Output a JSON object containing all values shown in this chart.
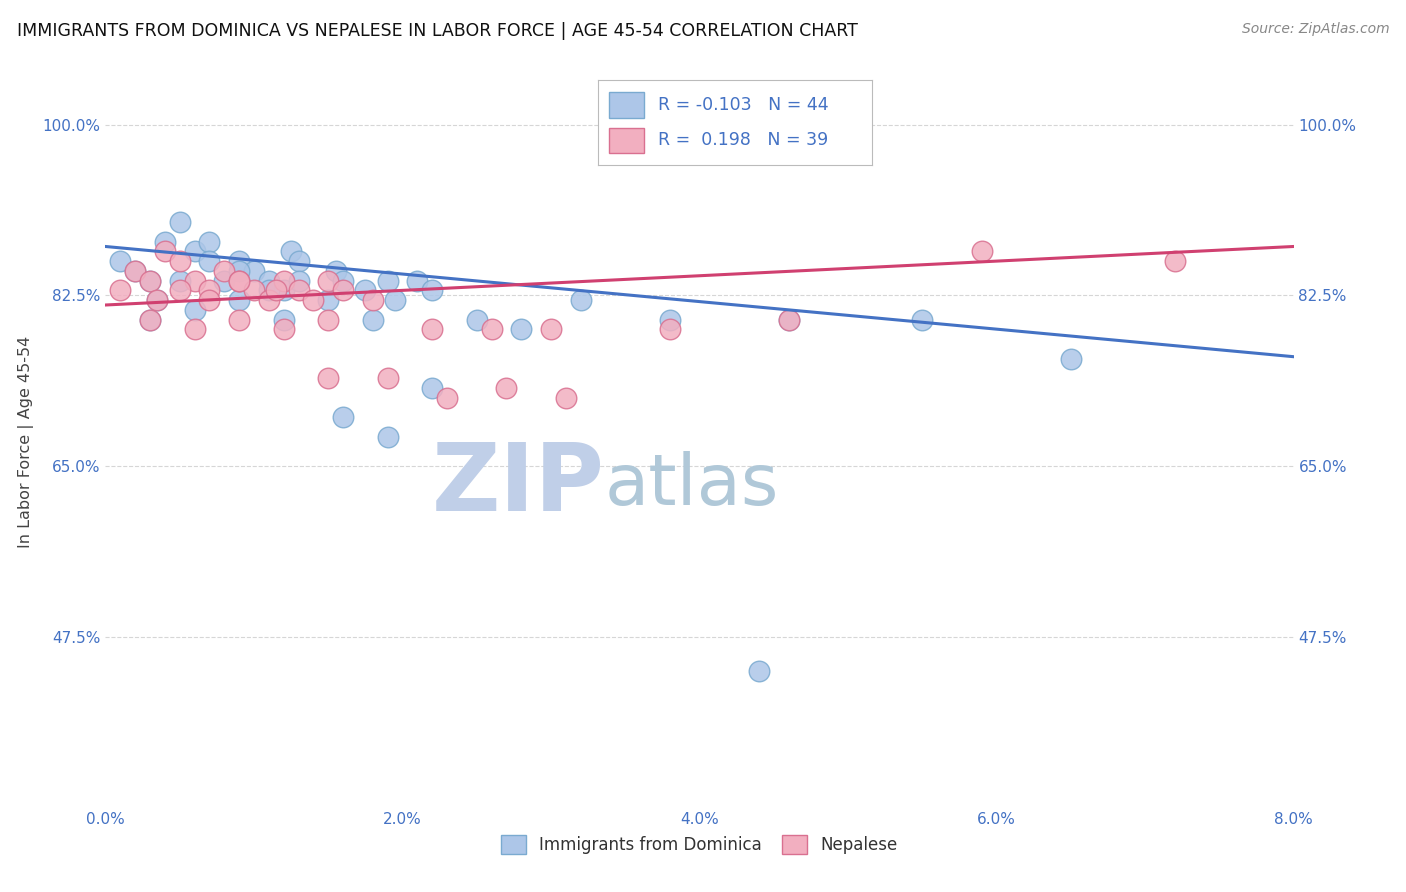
{
  "title": "IMMIGRANTS FROM DOMINICA VS NEPALESE IN LABOR FORCE | AGE 45-54 CORRELATION CHART",
  "source": "Source: ZipAtlas.com",
  "ylabel": "In Labor Force | Age 45-54",
  "xlim": [
    0.0,
    0.08
  ],
  "ylim": [
    0.3,
    1.05
  ],
  "xtick_labels": [
    "0.0%",
    "2.0%",
    "4.0%",
    "6.0%",
    "8.0%"
  ],
  "xtick_vals": [
    0.0,
    0.02,
    0.04,
    0.06,
    0.08
  ],
  "ytick_labels": [
    "47.5%",
    "65.0%",
    "82.5%",
    "100.0%"
  ],
  "ytick_vals": [
    0.475,
    0.65,
    0.825,
    1.0
  ],
  "blue_color": "#adc6e8",
  "blue_edge_color": "#7aaad0",
  "pink_color": "#f2afc0",
  "pink_edge_color": "#d97090",
  "blue_line_color": "#4472c4",
  "pink_line_color": "#d04070",
  "legend_blue_r": "-0.103",
  "legend_blue_n": "44",
  "legend_pink_r": "0.198",
  "legend_pink_n": "39",
  "watermark_zip": "ZIP",
  "watermark_atlas": "atlas",
  "watermark_color_zip": "#c0cfe8",
  "watermark_color_atlas": "#b0c8d8",
  "blue_x": [
    0.001,
    0.002,
    0.003,
    0.004,
    0.005,
    0.006,
    0.007,
    0.008,
    0.009,
    0.01,
    0.011,
    0.012,
    0.0125,
    0.013,
    0.0035,
    0.005,
    0.007,
    0.009,
    0.011,
    0.013,
    0.0155,
    0.016,
    0.0175,
    0.019,
    0.0195,
    0.021,
    0.022,
    0.003,
    0.006,
    0.009,
    0.012,
    0.015,
    0.018,
    0.025,
    0.028,
    0.032,
    0.038,
    0.046,
    0.055,
    0.065,
    0.016,
    0.019,
    0.022,
    0.044
  ],
  "blue_y": [
    0.86,
    0.85,
    0.84,
    0.88,
    0.9,
    0.87,
    0.88,
    0.84,
    0.86,
    0.85,
    0.84,
    0.83,
    0.87,
    0.86,
    0.82,
    0.84,
    0.86,
    0.85,
    0.83,
    0.84,
    0.85,
    0.84,
    0.83,
    0.84,
    0.82,
    0.84,
    0.83,
    0.8,
    0.81,
    0.82,
    0.8,
    0.82,
    0.8,
    0.8,
    0.79,
    0.82,
    0.8,
    0.8,
    0.8,
    0.76,
    0.7,
    0.68,
    0.73,
    0.44
  ],
  "pink_x": [
    0.001,
    0.002,
    0.003,
    0.004,
    0.005,
    0.006,
    0.007,
    0.008,
    0.009,
    0.01,
    0.011,
    0.012,
    0.013,
    0.0035,
    0.005,
    0.007,
    0.009,
    0.0115,
    0.014,
    0.015,
    0.016,
    0.018,
    0.003,
    0.006,
    0.009,
    0.012,
    0.015,
    0.022,
    0.026,
    0.03,
    0.038,
    0.046,
    0.059,
    0.072,
    0.015,
    0.019,
    0.023,
    0.027,
    0.031
  ],
  "pink_y": [
    0.83,
    0.85,
    0.84,
    0.87,
    0.86,
    0.84,
    0.83,
    0.85,
    0.84,
    0.83,
    0.82,
    0.84,
    0.83,
    0.82,
    0.83,
    0.82,
    0.84,
    0.83,
    0.82,
    0.84,
    0.83,
    0.82,
    0.8,
    0.79,
    0.8,
    0.79,
    0.8,
    0.79,
    0.79,
    0.79,
    0.79,
    0.8,
    0.87,
    0.86,
    0.74,
    0.74,
    0.72,
    0.73,
    0.72
  ]
}
